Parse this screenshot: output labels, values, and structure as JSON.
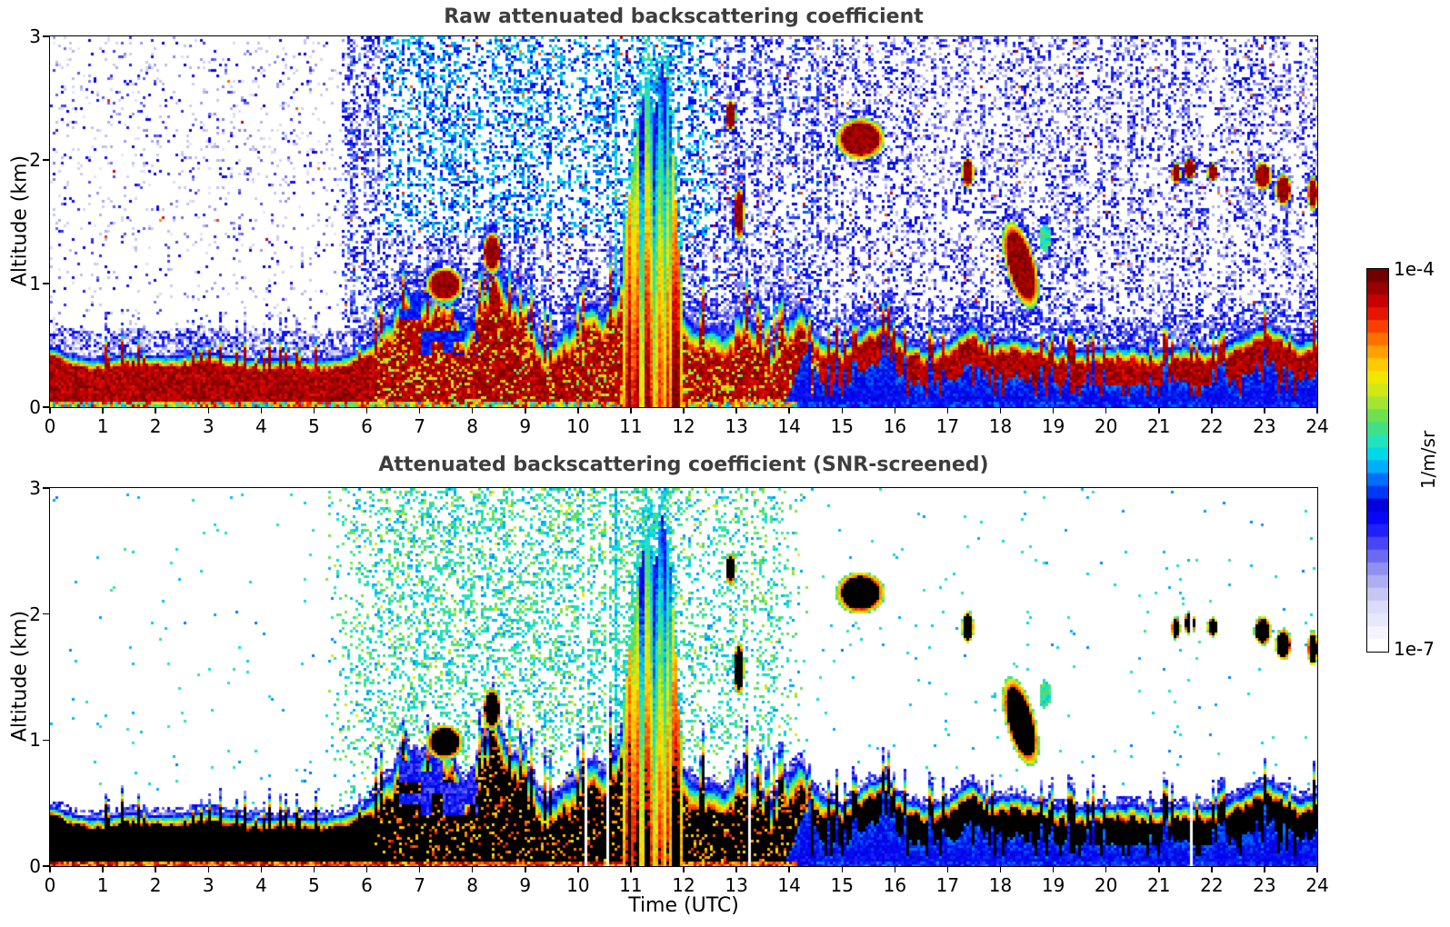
{
  "figure": {
    "background": "#ffffff",
    "title_color": "#3d3d3d"
  },
  "panels": [
    {
      "title": "Raw attenuated backscattering coefficient",
      "ylabel": "Altitude (km)",
      "xlabel": "",
      "yticks": [
        "0",
        "1",
        "2",
        "3"
      ],
      "xticks": [
        "0",
        "1",
        "2",
        "3",
        "4",
        "5",
        "6",
        "7",
        "8",
        "9",
        "10",
        "11",
        "12",
        "13",
        "14",
        "15",
        "16",
        "17",
        "18",
        "19",
        "20",
        "21",
        "22",
        "23",
        "24"
      ]
    },
    {
      "title": "Attenuated backscattering coefficient (SNR-screened)",
      "ylabel": "Altitude (km)",
      "xlabel": "Time (UTC)",
      "yticks": [
        "0",
        "1",
        "2",
        "3"
      ],
      "xticks": [
        "0",
        "1",
        "2",
        "3",
        "4",
        "5",
        "6",
        "7",
        "8",
        "9",
        "10",
        "11",
        "12",
        "13",
        "14",
        "15",
        "16",
        "17",
        "18",
        "19",
        "20",
        "21",
        "22",
        "23",
        "24"
      ]
    }
  ],
  "colorbar": {
    "top_label": "1e-4",
    "bottom_label": "1e-7",
    "unit_label": "1/m/sr",
    "steps": 30,
    "stops": [
      [
        0.0,
        "#ffffff"
      ],
      [
        0.05,
        "#efefff"
      ],
      [
        0.1,
        "#dcdcfa"
      ],
      [
        0.16,
        "#b9b9f2"
      ],
      [
        0.22,
        "#8585f2"
      ],
      [
        0.28,
        "#4040f8"
      ],
      [
        0.33,
        "#0a0aff"
      ],
      [
        0.38,
        "#0000dc"
      ],
      [
        0.43,
        "#0050ff"
      ],
      [
        0.48,
        "#00aaff"
      ],
      [
        0.52,
        "#00dce6"
      ],
      [
        0.56,
        "#28e6b4"
      ],
      [
        0.6,
        "#50dc64"
      ],
      [
        0.64,
        "#8ce63c"
      ],
      [
        0.68,
        "#c8e61e"
      ],
      [
        0.72,
        "#f0eb00"
      ],
      [
        0.76,
        "#ffc800"
      ],
      [
        0.8,
        "#ff9600"
      ],
      [
        0.84,
        "#ff5f00"
      ],
      [
        0.88,
        "#f52800"
      ],
      [
        0.92,
        "#d20000"
      ],
      [
        0.96,
        "#a00000"
      ],
      [
        1.0,
        "#700000"
      ]
    ]
  },
  "chart_data": [
    {
      "type": "heatmap",
      "title": "Raw attenuated backscattering coefficient",
      "xlabel": "Time (UTC)",
      "ylabel": "Altitude (km)",
      "xlim": [
        0,
        24
      ],
      "ylim": [
        0,
        3
      ],
      "colorscale": {
        "type": "log",
        "min": 1e-07,
        "max": 0.0001,
        "unit": "1/m/sr",
        "colormap": "jet-like, white at minimum"
      },
      "boundary_layer_top_km": [
        [
          0,
          0.5
        ],
        [
          0.5,
          0.42
        ],
        [
          1,
          0.4
        ],
        [
          1.5,
          0.45
        ],
        [
          2,
          0.42
        ],
        [
          2.5,
          0.44
        ],
        [
          3,
          0.46
        ],
        [
          3.5,
          0.42
        ],
        [
          4,
          0.4
        ],
        [
          4.5,
          0.42
        ],
        [
          5,
          0.4
        ],
        [
          5.5,
          0.42
        ],
        [
          6,
          0.5
        ],
        [
          6.4,
          0.75
        ],
        [
          6.7,
          0.95
        ],
        [
          7,
          0.9
        ],
        [
          7.3,
          1.0
        ],
        [
          7.6,
          0.95
        ],
        [
          7.9,
          0.65
        ],
        [
          8.2,
          1.05
        ],
        [
          8.45,
          1.2
        ],
        [
          8.7,
          0.95
        ],
        [
          9,
          0.9
        ],
        [
          9.3,
          0.6
        ],
        [
          9.6,
          0.6
        ],
        [
          9.9,
          0.75
        ],
        [
          10.2,
          0.85
        ],
        [
          10.5,
          0.8
        ],
        [
          10.8,
          1.05
        ],
        [
          11,
          1.3
        ],
        [
          11.5,
          1.15
        ],
        [
          11.9,
          0.85
        ],
        [
          12.2,
          0.7
        ],
        [
          12.5,
          0.7
        ],
        [
          12.8,
          0.6
        ],
        [
          13,
          0.8
        ],
        [
          13.3,
          0.75
        ],
        [
          13.6,
          0.55
        ],
        [
          13.9,
          0.75
        ],
        [
          14.2,
          0.9
        ],
        [
          14.5,
          0.6
        ],
        [
          14.8,
          0.55
        ],
        [
          15,
          0.5
        ],
        [
          15.4,
          0.65
        ],
        [
          15.8,
          0.75
        ],
        [
          16.2,
          0.55
        ],
        [
          16.6,
          0.5
        ],
        [
          17,
          0.55
        ],
        [
          17.4,
          0.7
        ],
        [
          17.8,
          0.55
        ],
        [
          18.2,
          0.6
        ],
        [
          18.6,
          0.55
        ],
        [
          19,
          0.5
        ],
        [
          19.5,
          0.48
        ],
        [
          20,
          0.5
        ],
        [
          20.5,
          0.52
        ],
        [
          21,
          0.48
        ],
        [
          21.5,
          0.52
        ],
        [
          22,
          0.5
        ],
        [
          22.5,
          0.58
        ],
        [
          23,
          0.7
        ],
        [
          23.3,
          0.65
        ],
        [
          23.6,
          0.55
        ],
        [
          24,
          0.6
        ]
      ],
      "clouds": [
        {
          "t0": 7.22,
          "t1": 7.72,
          "z0": 0.88,
          "z1": 1.1,
          "tilt": 0,
          "strength": 1
        },
        {
          "t0": 8.25,
          "t1": 8.48,
          "z0": 1.12,
          "z1": 1.38,
          "tilt": 0,
          "strength": 1
        },
        {
          "t0": 15.0,
          "t1": 15.68,
          "z0": 2.04,
          "z1": 2.3,
          "tilt": 0,
          "strength": 1
        },
        {
          "t0": 17.3,
          "t1": 17.44,
          "z0": 1.8,
          "z1": 2.0,
          "tilt": 0,
          "strength": 1
        },
        {
          "t0": 18.12,
          "t1": 18.62,
          "z0": 0.92,
          "z1": 1.38,
          "tilt": -0.55,
          "strength": 1
        },
        {
          "t0": 18.74,
          "t1": 18.92,
          "z0": 1.26,
          "z1": 1.48,
          "tilt": 0,
          "strength": 0.5
        },
        {
          "t0": 21.26,
          "t1": 21.36,
          "z0": 1.82,
          "z1": 1.96,
          "tilt": 0,
          "strength": 1
        },
        {
          "t0": 21.5,
          "t1": 21.64,
          "z0": 1.86,
          "z1": 2.0,
          "tilt": 0,
          "strength": 1
        },
        {
          "t0": 21.94,
          "t1": 22.06,
          "z0": 1.84,
          "z1": 1.96,
          "tilt": 0,
          "strength": 1
        },
        {
          "t0": 22.84,
          "t1": 23.06,
          "z0": 1.78,
          "z1": 1.96,
          "tilt": 0,
          "strength": 1
        },
        {
          "t0": 23.24,
          "t1": 23.44,
          "z0": 1.66,
          "z1": 1.86,
          "tilt": 0,
          "strength": 1
        },
        {
          "t0": 23.84,
          "t1": 23.96,
          "z0": 1.62,
          "z1": 1.84,
          "tilt": 0,
          "strength": 1
        },
        {
          "t0": 12.82,
          "t1": 12.94,
          "z0": 2.26,
          "z1": 2.46,
          "tilt": 0,
          "strength": 1
        },
        {
          "t0": 12.98,
          "t1": 13.1,
          "z0": 1.4,
          "z1": 1.74,
          "tilt": 0,
          "strength": 0.9
        }
      ],
      "plume": {
        "time_range": [
          10.85,
          11.95
        ],
        "top_profile": [
          [
            10.85,
            1.25
          ],
          [
            11.0,
            1.85
          ],
          [
            11.15,
            2.3
          ],
          [
            11.3,
            2.7
          ],
          [
            11.45,
            2.35
          ],
          [
            11.58,
            2.8
          ],
          [
            11.72,
            2.5
          ],
          [
            11.82,
            1.9
          ],
          [
            11.92,
            1.05
          ]
        ]
      },
      "green_streak_times_utc": [
        10.32,
        10.52,
        10.72,
        12.08
      ],
      "weak_surface_layer_after_utc": 14.1,
      "noise_description": "dense blue/cyan speckle above the boundary layer all day; sparse before 5.5 UTC; green-yellow tinge 6.3-12.6 UTC above 1.4 km"
    },
    {
      "type": "heatmap",
      "title": "Attenuated backscattering coefficient (SNR-screened)",
      "xlabel": "Time (UTC)",
      "ylabel": "Altitude (km)",
      "xlim": [
        0,
        24
      ],
      "ylim": [
        0,
        3
      ],
      "colorscale": {
        "type": "log",
        "min": 1e-07,
        "max": 0.0001,
        "unit": "1/m/sr",
        "colormap": "jet-like, white at minimum, black above maximum"
      },
      "screening": "low-SNR pixels removed (white); saturated returns rendered black",
      "shares_scene_with_panel": 0,
      "noise_window_utc": [
        5.2,
        14.4
      ],
      "noise_description": "cyan-green speckle only between 5.2 and 14.4 UTC; nearly clean elsewhere",
      "white_gap_columns_utc": [
        10.12,
        10.55,
        13.25,
        21.6
      ]
    }
  ]
}
